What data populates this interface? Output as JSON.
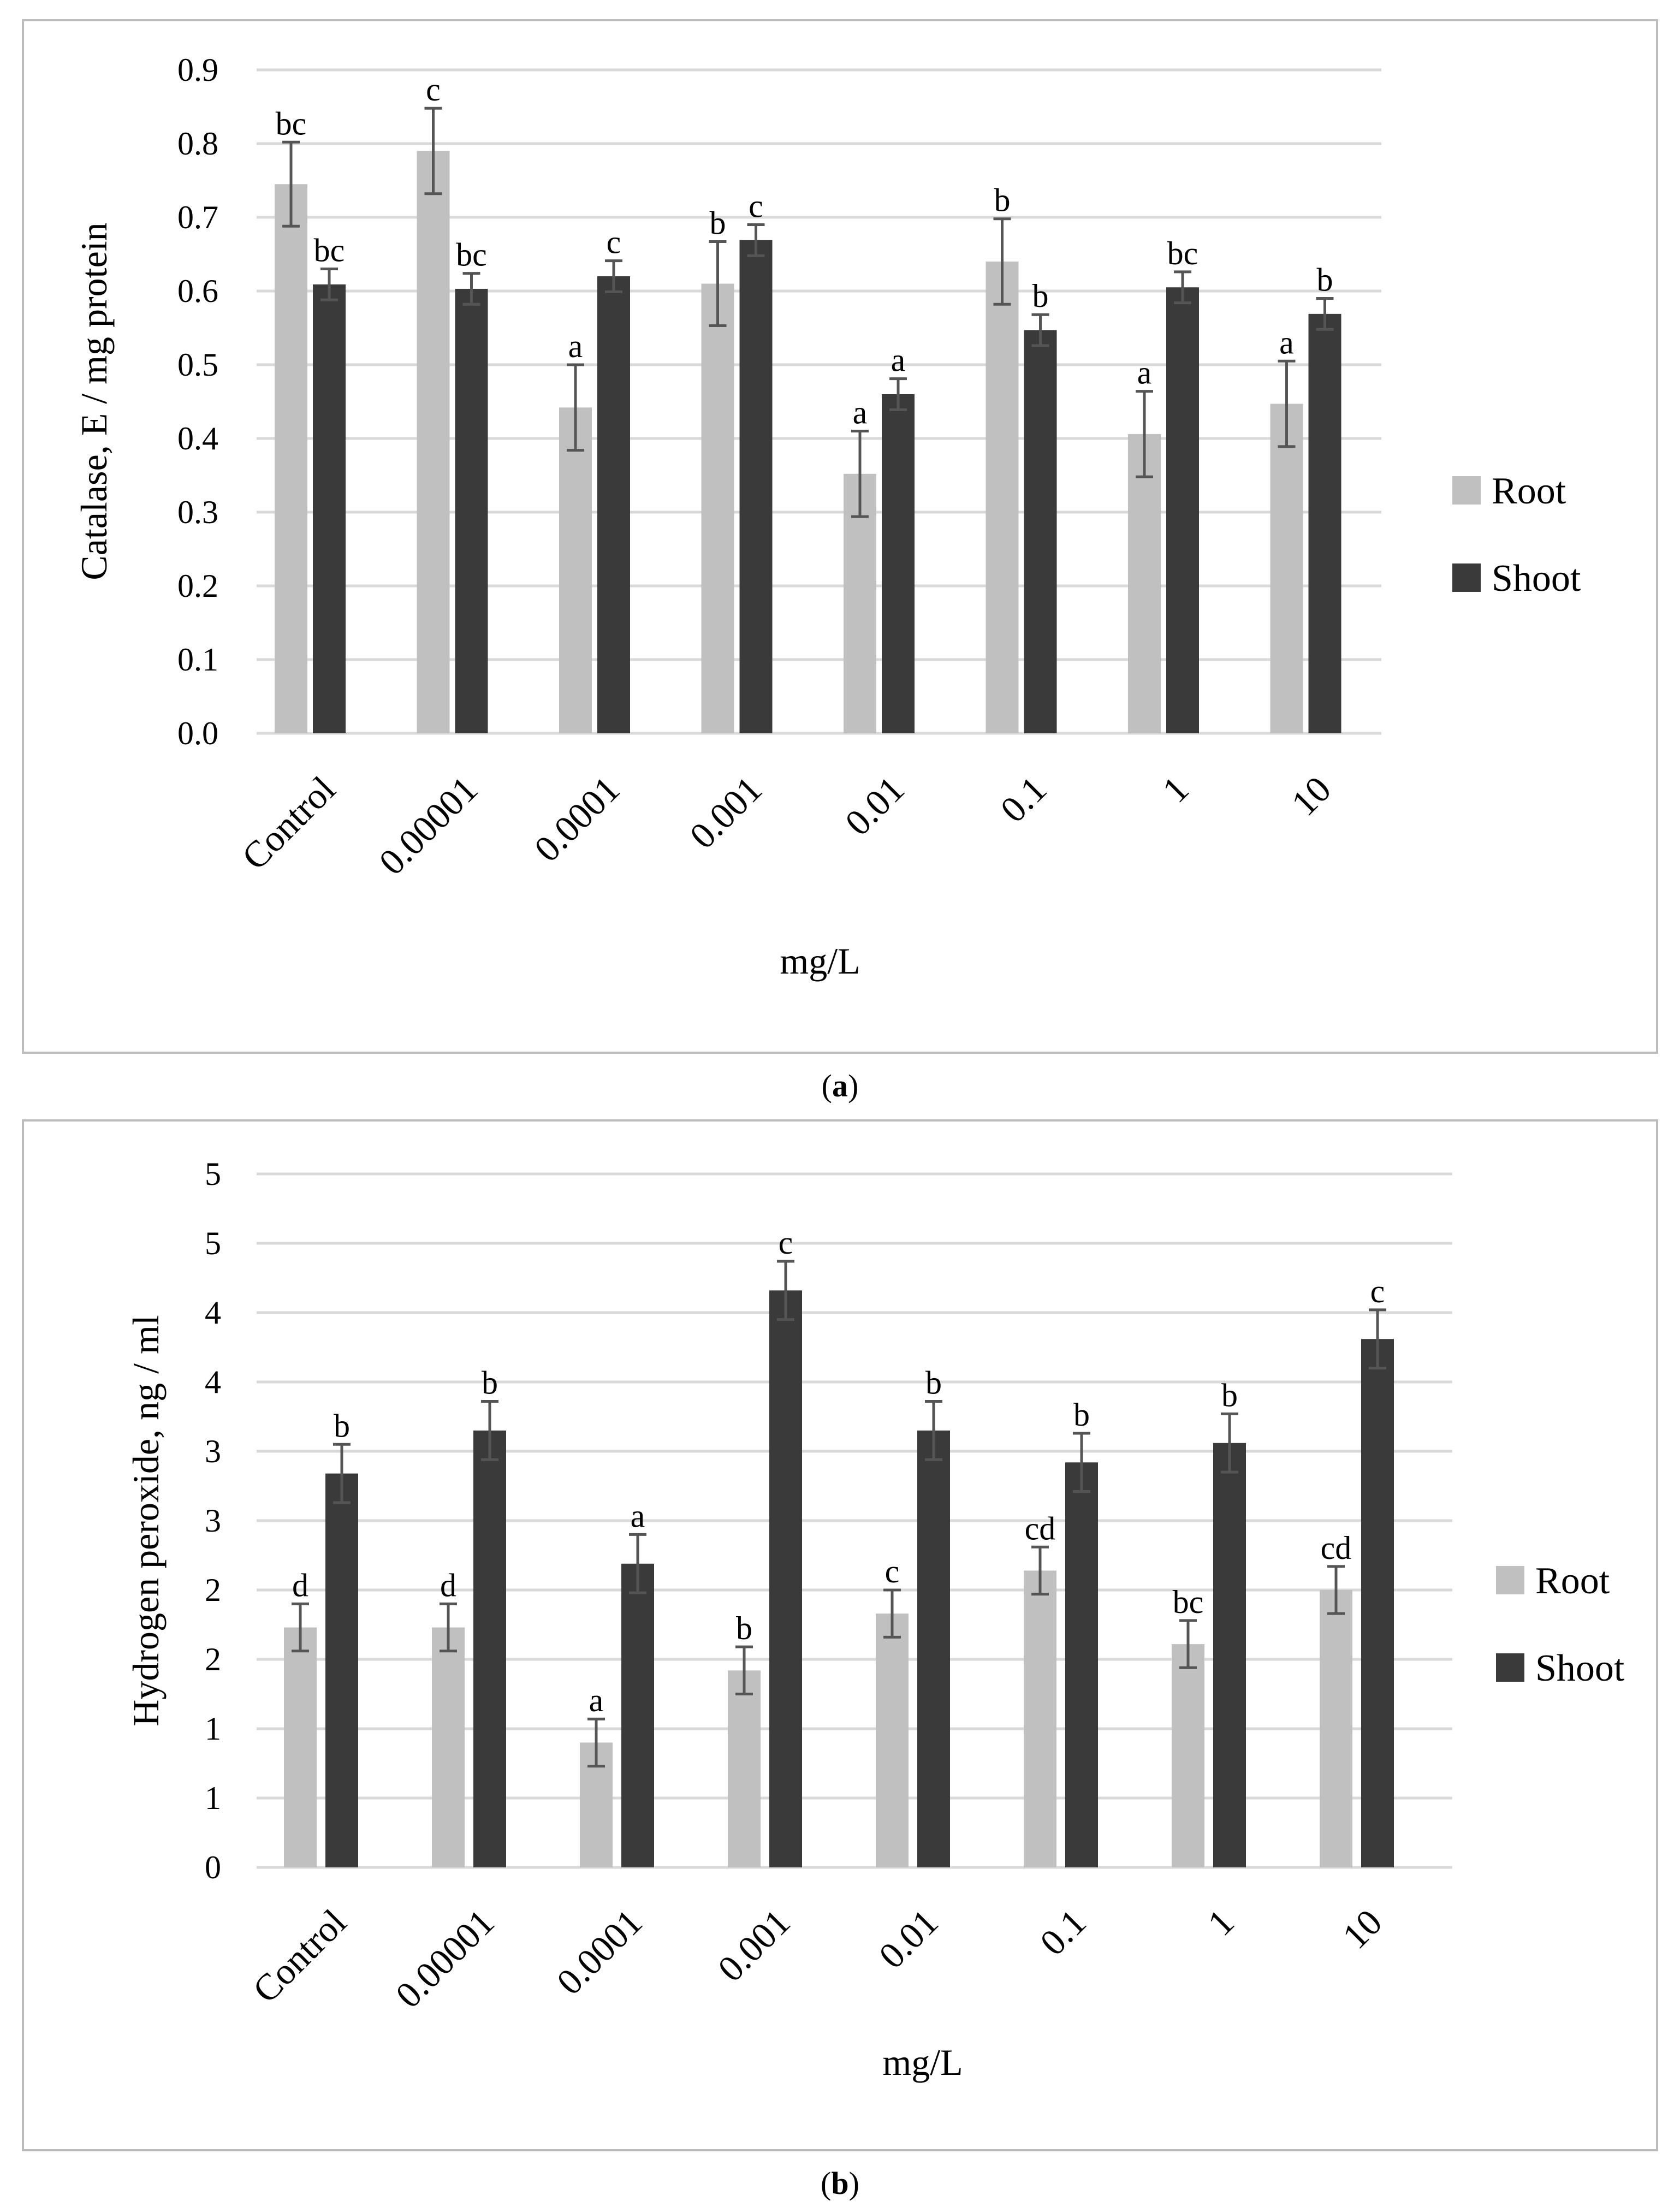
{
  "colors": {
    "root": "#c0c0c0",
    "shoot": "#3a3a3a",
    "grid": "#d9d9d9",
    "error": "#555555"
  },
  "captions": [
    {
      "prefix": "(",
      "letter": "a",
      "suffix": ")"
    },
    {
      "prefix": "(",
      "letter": "b",
      "suffix": ")"
    }
  ],
  "chart_data": [
    {
      "type": "bar",
      "title": "",
      "xlabel": "mg/L",
      "ylabel": "Catalase, E / mg protein",
      "ylim": [
        0,
        0.9
      ],
      "yticks": [
        0,
        0.1,
        0.2,
        0.3,
        0.4,
        0.5,
        0.6,
        0.7,
        0.8,
        0.9
      ],
      "ytick_labels": [
        "0.0",
        "0.1",
        "0.2",
        "0.3",
        "0.4",
        "0.5",
        "0.6",
        "0.7",
        "0.8",
        "0.9"
      ],
      "categories": [
        "Control",
        "0.00001",
        "0.0001",
        "0.001",
        "0.01",
        "0.1",
        "1",
        "10"
      ],
      "legend_position": "right",
      "grid": true,
      "series": [
        {
          "name": "Root",
          "values": [
            0.745,
            0.79,
            0.442,
            0.61,
            0.352,
            0.64,
            0.406,
            0.447
          ],
          "errors": [
            0.057,
            0.058,
            0.058,
            0.057,
            0.058,
            0.058,
            0.058,
            0.058
          ],
          "labels": [
            "bc",
            "c",
            "a",
            "b",
            "a",
            "b",
            "a",
            "a"
          ]
        },
        {
          "name": "Shoot",
          "values": [
            0.609,
            0.603,
            0.62,
            0.669,
            0.46,
            0.547,
            0.605,
            0.569
          ],
          "errors": [
            0.021,
            0.021,
            0.021,
            0.021,
            0.021,
            0.021,
            0.021,
            0.021
          ],
          "labels": [
            "bc",
            "bc",
            "c",
            "c",
            "a",
            "b",
            "bc",
            "b"
          ]
        }
      ]
    },
    {
      "type": "bar",
      "title": "",
      "xlabel": "mg/L",
      "ylabel": "Hydrogen peroxide, ng / ml",
      "ylim": [
        0,
        5
      ],
      "yticks": [
        0,
        0.5,
        1,
        1.5,
        2,
        2.5,
        3,
        3.5,
        4,
        4.5,
        5
      ],
      "ytick_labels": [
        "0",
        "1",
        "1",
        "2",
        "2",
        "3",
        "3",
        "4",
        "4",
        "5",
        "5"
      ],
      "categories": [
        "Control",
        "0.00001",
        "0.0001",
        "0.001",
        "0.01",
        "0.1",
        "1",
        "10"
      ],
      "legend_position": "right",
      "grid": true,
      "series": [
        {
          "name": "Root",
          "values": [
            1.73,
            1.73,
            0.9,
            1.42,
            1.83,
            2.14,
            1.61,
            2.0
          ],
          "errors": [
            0.17,
            0.17,
            0.17,
            0.17,
            0.17,
            0.17,
            0.17,
            0.17
          ],
          "labels": [
            "d",
            "d",
            "a",
            "b",
            "c",
            "cd",
            "bc",
            "cd"
          ]
        },
        {
          "name": "Shoot",
          "values": [
            2.84,
            3.15,
            2.19,
            4.16,
            3.15,
            2.92,
            3.06,
            3.81
          ],
          "errors": [
            0.21,
            0.21,
            0.21,
            0.21,
            0.21,
            0.21,
            0.21,
            0.21
          ],
          "labels": [
            "b",
            "b",
            "a",
            "c",
            "b",
            "b",
            "b",
            "c"
          ]
        }
      ]
    }
  ]
}
